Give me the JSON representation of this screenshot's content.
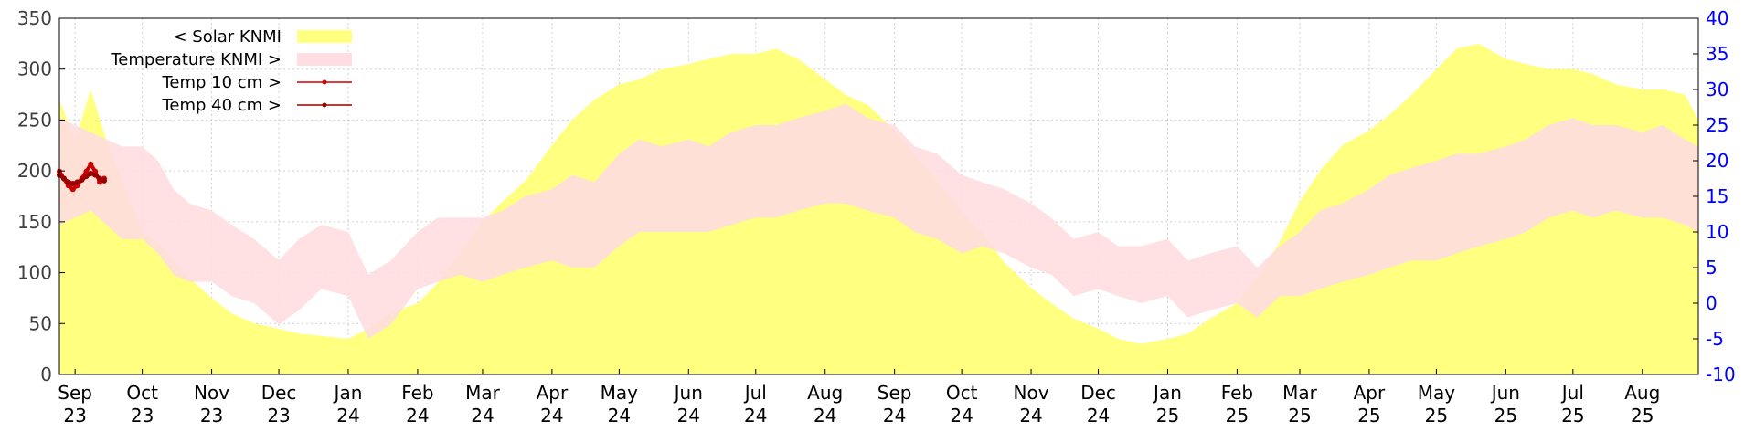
{
  "chart_data": {
    "type": "area",
    "x_ticks": [
      {
        "month": "Sep",
        "year": "23"
      },
      {
        "month": "Oct",
        "year": "23"
      },
      {
        "month": "Nov",
        "year": "23"
      },
      {
        "month": "Dec",
        "year": "23"
      },
      {
        "month": "Jan",
        "year": "24"
      },
      {
        "month": "Feb",
        "year": "24"
      },
      {
        "month": "Mar",
        "year": "24"
      },
      {
        "month": "Apr",
        "year": "24"
      },
      {
        "month": "May",
        "year": "24"
      },
      {
        "month": "Jun",
        "year": "24"
      },
      {
        "month": "Jul",
        "year": "24"
      },
      {
        "month": "Aug",
        "year": "24"
      },
      {
        "month": "Sep",
        "year": "24"
      },
      {
        "month": "Oct",
        "year": "24"
      },
      {
        "month": "Nov",
        "year": "24"
      },
      {
        "month": "Dec",
        "year": "24"
      },
      {
        "month": "Jan",
        "year": "25"
      },
      {
        "month": "Feb",
        "year": "25"
      },
      {
        "month": "Mar",
        "year": "25"
      },
      {
        "month": "Apr",
        "year": "25"
      },
      {
        "month": "May",
        "year": "25"
      },
      {
        "month": "Jun",
        "year": "25"
      },
      {
        "month": "Jul",
        "year": "25"
      },
      {
        "month": "Aug",
        "year": "25"
      }
    ],
    "x_range": [
      "2023-08-25",
      "2025-08-26"
    ],
    "y_left": {
      "range": [
        0,
        350
      ],
      "ticks": [
        0,
        50,
        100,
        150,
        200,
        250,
        300,
        350
      ],
      "color": "#404040"
    },
    "y_right": {
      "range": [
        -10,
        40
      ],
      "ticks": [
        -10,
        -5,
        0,
        5,
        10,
        15,
        20,
        25,
        30,
        35,
        40
      ],
      "color": "#0000ff"
    },
    "grid": true,
    "legend_position": "top-left",
    "series": [
      {
        "name": "< Solar KNMI",
        "axis": "left",
        "kind": "area",
        "color": "#ffff80",
        "points": [
          [
            "2023-08-25",
            270
          ],
          [
            "2023-09-01",
            230
          ],
          [
            "2023-09-08",
            280
          ],
          [
            "2023-09-15",
            230
          ],
          [
            "2023-09-22",
            190
          ],
          [
            "2023-10-01",
            140
          ],
          [
            "2023-10-08",
            130
          ],
          [
            "2023-10-15",
            110
          ],
          [
            "2023-10-22",
            95
          ],
          [
            "2023-11-01",
            75
          ],
          [
            "2023-11-10",
            60
          ],
          [
            "2023-11-20",
            50
          ],
          [
            "2023-12-01",
            45
          ],
          [
            "2023-12-10",
            40
          ],
          [
            "2023-12-20",
            38
          ],
          [
            "2024-01-01",
            35
          ],
          [
            "2024-01-10",
            45
          ],
          [
            "2024-01-20",
            60
          ],
          [
            "2024-02-01",
            70
          ],
          [
            "2024-02-10",
            90
          ],
          [
            "2024-02-20",
            120
          ],
          [
            "2024-03-01",
            150
          ],
          [
            "2024-03-10",
            170
          ],
          [
            "2024-03-20",
            190
          ],
          [
            "2024-04-01",
            225
          ],
          [
            "2024-04-10",
            250
          ],
          [
            "2024-04-20",
            270
          ],
          [
            "2024-05-01",
            285
          ],
          [
            "2024-05-10",
            290
          ],
          [
            "2024-05-20",
            300
          ],
          [
            "2024-06-01",
            305
          ],
          [
            "2024-06-10",
            310
          ],
          [
            "2024-06-20",
            315
          ],
          [
            "2024-07-01",
            315
          ],
          [
            "2024-07-10",
            320
          ],
          [
            "2024-07-20",
            310
          ],
          [
            "2024-08-01",
            290
          ],
          [
            "2024-08-10",
            275
          ],
          [
            "2024-08-20",
            265
          ],
          [
            "2024-09-01",
            240
          ],
          [
            "2024-09-10",
            215
          ],
          [
            "2024-09-20",
            190
          ],
          [
            "2024-10-01",
            160
          ],
          [
            "2024-10-10",
            140
          ],
          [
            "2024-10-20",
            110
          ],
          [
            "2024-11-01",
            85
          ],
          [
            "2024-11-10",
            70
          ],
          [
            "2024-11-20",
            55
          ],
          [
            "2024-12-01",
            45
          ],
          [
            "2024-12-10",
            35
          ],
          [
            "2024-12-20",
            30
          ],
          [
            "2025-01-01",
            35
          ],
          [
            "2025-01-10",
            40
          ],
          [
            "2025-01-20",
            55
          ],
          [
            "2025-02-01",
            70
          ],
          [
            "2025-02-10",
            95
          ],
          [
            "2025-02-20",
            130
          ],
          [
            "2025-03-01",
            170
          ],
          [
            "2025-03-10",
            200
          ],
          [
            "2025-03-20",
            225
          ],
          [
            "2025-04-01",
            240
          ],
          [
            "2025-04-10",
            255
          ],
          [
            "2025-04-20",
            275
          ],
          [
            "2025-05-01",
            300
          ],
          [
            "2025-05-10",
            320
          ],
          [
            "2025-05-20",
            325
          ],
          [
            "2025-06-01",
            310
          ],
          [
            "2025-06-10",
            305
          ],
          [
            "2025-06-20",
            300
          ],
          [
            "2025-07-01",
            300
          ],
          [
            "2025-07-10",
            295
          ],
          [
            "2025-07-20",
            285
          ],
          [
            "2025-08-01",
            280
          ],
          [
            "2025-08-10",
            280
          ],
          [
            "2025-08-20",
            275
          ],
          [
            "2025-08-26",
            250
          ]
        ]
      },
      {
        "name": "Temperature KNMI >",
        "axis": "right",
        "kind": "band",
        "color": "#ffdde0",
        "points": [
          [
            "2023-08-25",
            11,
            26
          ],
          [
            "2023-09-01",
            12,
            25
          ],
          [
            "2023-09-08",
            13,
            24
          ],
          [
            "2023-09-15",
            11,
            23
          ],
          [
            "2023-09-22",
            9,
            22
          ],
          [
            "2023-10-01",
            9,
            22
          ],
          [
            "2023-10-08",
            7,
            20
          ],
          [
            "2023-10-15",
            4,
            16
          ],
          [
            "2023-10-22",
            3,
            14
          ],
          [
            "2023-11-01",
            3,
            13
          ],
          [
            "2023-11-10",
            1,
            11
          ],
          [
            "2023-11-20",
            0,
            9
          ],
          [
            "2023-12-01",
            -3,
            6
          ],
          [
            "2023-12-10",
            -1,
            9
          ],
          [
            "2023-12-20",
            2,
            11
          ],
          [
            "2024-01-01",
            1,
            10
          ],
          [
            "2024-01-10",
            -5,
            4
          ],
          [
            "2024-01-20",
            -3,
            6
          ],
          [
            "2024-02-01",
            2,
            10
          ],
          [
            "2024-02-10",
            3,
            12
          ],
          [
            "2024-02-20",
            4,
            12
          ],
          [
            "2024-03-01",
            3,
            12
          ],
          [
            "2024-03-10",
            4,
            13
          ],
          [
            "2024-03-20",
            5,
            15
          ],
          [
            "2024-04-01",
            6,
            16
          ],
          [
            "2024-04-10",
            5,
            18
          ],
          [
            "2024-04-20",
            5,
            17
          ],
          [
            "2024-05-01",
            8,
            21
          ],
          [
            "2024-05-10",
            10,
            23
          ],
          [
            "2024-05-20",
            10,
            22
          ],
          [
            "2024-06-01",
            10,
            23
          ],
          [
            "2024-06-10",
            10,
            22
          ],
          [
            "2024-06-20",
            11,
            24
          ],
          [
            "2024-07-01",
            12,
            25
          ],
          [
            "2024-07-10",
            12,
            25
          ],
          [
            "2024-07-20",
            13,
            26
          ],
          [
            "2024-08-01",
            14,
            27
          ],
          [
            "2024-08-10",
            14,
            28
          ],
          [
            "2024-08-20",
            13,
            26
          ],
          [
            "2024-09-01",
            12,
            25
          ],
          [
            "2024-09-10",
            10,
            22
          ],
          [
            "2024-09-20",
            9,
            21
          ],
          [
            "2024-10-01",
            7,
            18
          ],
          [
            "2024-10-10",
            8,
            17
          ],
          [
            "2024-10-20",
            7,
            16
          ],
          [
            "2024-11-01",
            5,
            14
          ],
          [
            "2024-11-10",
            4,
            12
          ],
          [
            "2024-11-20",
            1,
            9
          ],
          [
            "2024-12-01",
            2,
            10
          ],
          [
            "2024-12-10",
            1,
            8
          ],
          [
            "2024-12-20",
            0,
            8
          ],
          [
            "2025-01-01",
            1,
            9
          ],
          [
            "2025-01-10",
            -2,
            6
          ],
          [
            "2025-01-20",
            -1,
            7
          ],
          [
            "2025-02-01",
            0,
            8
          ],
          [
            "2025-02-10",
            -2,
            5
          ],
          [
            "2025-02-20",
            1,
            8
          ],
          [
            "2025-03-01",
            1,
            10
          ],
          [
            "2025-03-10",
            2,
            13
          ],
          [
            "2025-03-20",
            3,
            14
          ],
          [
            "2025-04-01",
            4,
            16
          ],
          [
            "2025-04-10",
            5,
            18
          ],
          [
            "2025-04-20",
            6,
            19
          ],
          [
            "2025-05-01",
            6,
            20
          ],
          [
            "2025-05-10",
            7,
            21
          ],
          [
            "2025-05-20",
            8,
            21
          ],
          [
            "2025-06-01",
            9,
            22
          ],
          [
            "2025-06-10",
            10,
            23
          ],
          [
            "2025-06-20",
            12,
            25
          ],
          [
            "2025-07-01",
            13,
            26
          ],
          [
            "2025-07-10",
            12,
            25
          ],
          [
            "2025-07-20",
            13,
            25
          ],
          [
            "2025-08-01",
            12,
            24
          ],
          [
            "2025-08-10",
            12,
            25
          ],
          [
            "2025-08-20",
            11,
            23
          ],
          [
            "2025-08-26",
            10,
            22
          ]
        ]
      },
      {
        "name": "Temp 10 cm >",
        "axis": "right",
        "kind": "line",
        "color": "#cc0000",
        "points": [
          [
            "2023-08-25",
            18.5
          ],
          [
            "2023-08-27",
            17.5
          ],
          [
            "2023-08-29",
            16.5
          ],
          [
            "2023-08-31",
            16.0
          ],
          [
            "2023-09-02",
            16.5
          ],
          [
            "2023-09-04",
            17.5
          ],
          [
            "2023-09-06",
            18.5
          ],
          [
            "2023-09-08",
            19.5
          ],
          [
            "2023-09-10",
            18.5
          ],
          [
            "2023-09-12",
            17.0
          ],
          [
            "2023-09-14",
            17.5
          ]
        ]
      },
      {
        "name": "Temp 40 cm >",
        "axis": "right",
        "kind": "line",
        "color": "#990000",
        "points": [
          [
            "2023-08-25",
            18.0
          ],
          [
            "2023-08-27",
            17.5
          ],
          [
            "2023-08-29",
            17.0
          ],
          [
            "2023-08-31",
            16.8
          ],
          [
            "2023-09-02",
            17.0
          ],
          [
            "2023-09-04",
            17.3
          ],
          [
            "2023-09-06",
            17.8
          ],
          [
            "2023-09-08",
            18.2
          ],
          [
            "2023-09-10",
            18.0
          ],
          [
            "2023-09-12",
            17.5
          ],
          [
            "2023-09-14",
            17.2
          ]
        ]
      }
    ]
  }
}
